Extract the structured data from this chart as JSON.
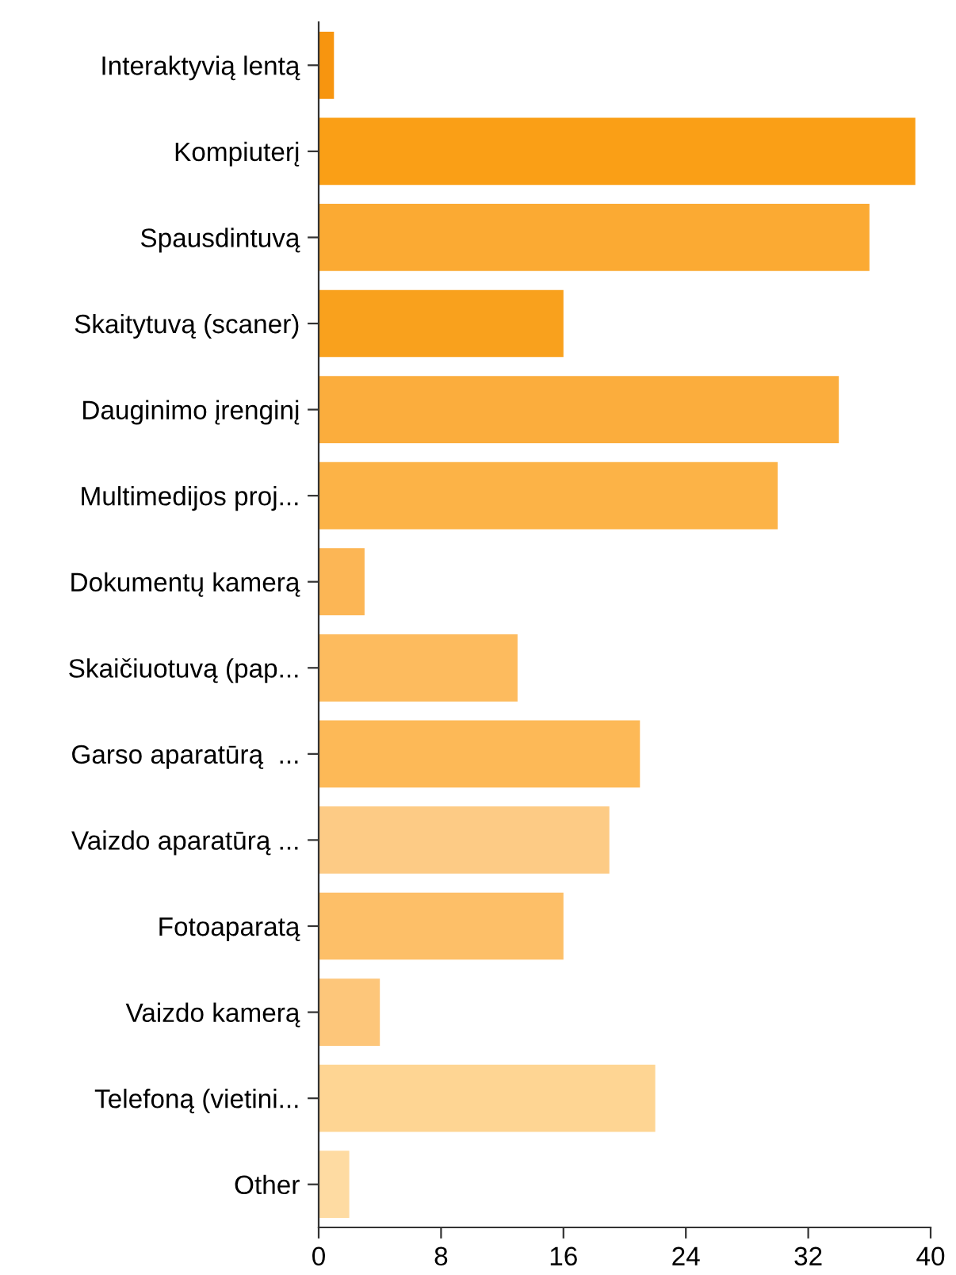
{
  "chart_data": {
    "type": "bar",
    "orientation": "horizontal",
    "categories": [
      "Interaktyvią lentą",
      "Kompiuterį",
      "Spausdintuvą",
      "Skaitytuvą (scaner)",
      "Dauginimo įrenginį",
      "Multimedijos proj...",
      "Dokumentų kamerą",
      "Skaičiuotuvą (pap...",
      "Garso aparatūrą  ...",
      "Vaizdo aparatūrą ...",
      "Fotoaparatą",
      "Vaizdo kamerą",
      "Telefoną (vietini...",
      "Other"
    ],
    "values": [
      1,
      39,
      36,
      16,
      34,
      30,
      3,
      13,
      21,
      19,
      16,
      4,
      22,
      2
    ],
    "colors": [
      "#f7950f",
      "#fa9f16",
      "#fbaa33",
      "#f9a11d",
      "#fbad3d",
      "#fcb347",
      "#fcb655",
      "#fdbb5e",
      "#fdb957",
      "#fdcb85",
      "#fdbf68",
      "#fdc67a",
      "#fed593",
      "#fedba2"
    ],
    "xlim": [
      0,
      40
    ],
    "xticks": [
      0,
      8,
      16,
      24,
      32,
      40
    ],
    "grid": false
  }
}
